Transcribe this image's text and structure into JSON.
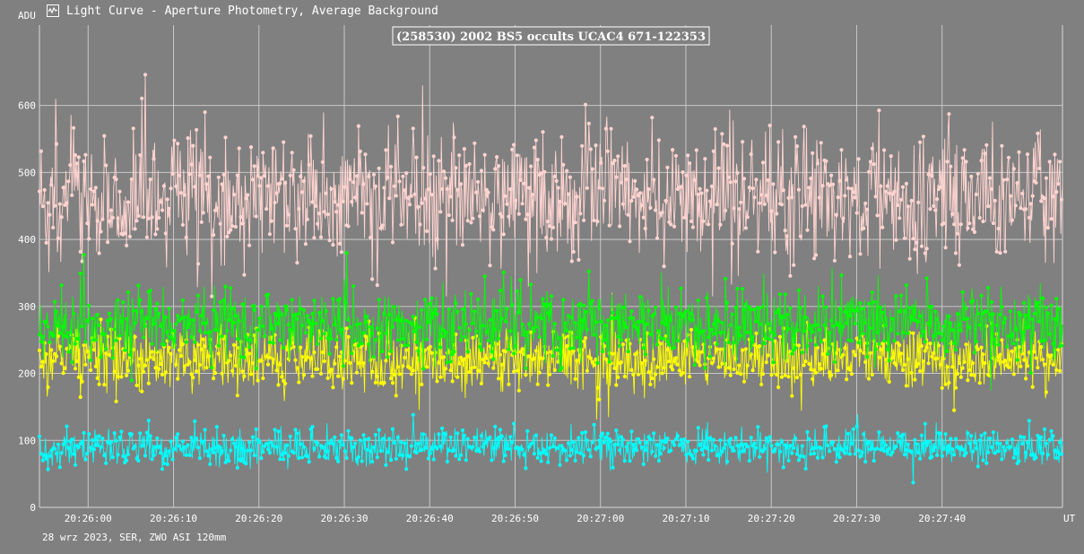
{
  "window": {
    "title": "Light Curve - Aperture Photometry, Average Background",
    "icon": "light-curve-app-icon"
  },
  "footer": {
    "text": "28 wrz 2023, SER, ZWO ASI 120mm"
  },
  "chart_data": {
    "type": "line",
    "title": "(258530) 2002 BS5 occults UCAC4 671-122353",
    "ylabel": "ADU",
    "xlabel": "UT",
    "ylim": [
      0,
      720
    ],
    "xlim": [
      "20:25:54.3",
      "20:27:54.1"
    ],
    "yticks": [
      "100",
      "200",
      "300",
      "400",
      "500",
      "600"
    ],
    "xticks": [
      "20:26:00",
      "20:26:10",
      "20:26:20",
      "20:26:30",
      "20:26:40",
      "20:26:50",
      "20:27:00",
      "20:27:10",
      "20:27:20",
      "20:27:30",
      "20:27:40"
    ],
    "grid": true,
    "colors": {
      "background": "#808080",
      "grid": "#c8c8c8",
      "axis": "#d8d8d8"
    },
    "series": [
      {
        "color": "#ffd4d0",
        "mean": 465,
        "noise": 48,
        "min_value": 315,
        "max_value": 675
      },
      {
        "color": "#ffff00",
        "mean": 222,
        "noise": 24,
        "min_value": 130,
        "max_value": 335
      },
      {
        "color": "#00ff00",
        "mean": 272,
        "noise": 27,
        "min_value": 170,
        "max_value": 380
      },
      {
        "color": "#00ffff",
        "mean": 90,
        "noise": 13,
        "min_value": 25,
        "max_value": 163
      }
    ]
  }
}
